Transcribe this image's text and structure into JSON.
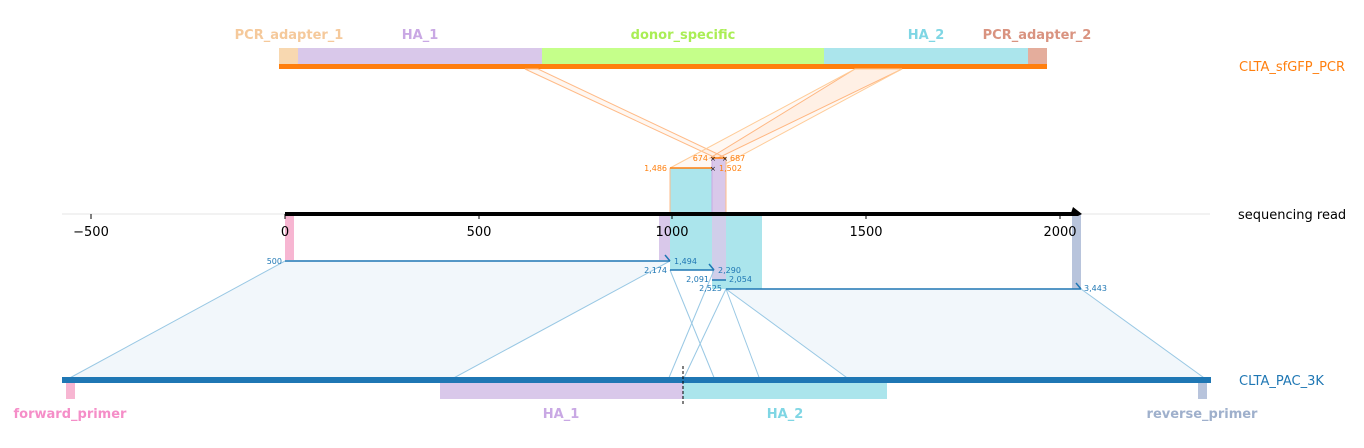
{
  "reads": {
    "donor_name": "CLTA_sfGFP_PCR",
    "read_name": "sequencing read",
    "target_name": "CLTA_PAC_3K"
  },
  "donor_features": [
    {
      "label": "PCR_adapter_1",
      "color": "#f8d8b0",
      "text_color": "#f5c99b"
    },
    {
      "label": "HA_1",
      "color": "#d9c8ea",
      "text_color": "#c9a8e4"
    },
    {
      "label": "donor_specific",
      "color": "#c5ff8a",
      "text_color": "#aaee55"
    },
    {
      "label": "HA_2",
      "color": "#abe5ec",
      "text_color": "#7fd6e4"
    },
    {
      "label": "PCR_adapter_2",
      "color": "#e4ad9c",
      "text_color": "#d99380"
    }
  ],
  "target_features": [
    {
      "label": "forward_primer",
      "color": "#f7b6d2",
      "text_color": "#f58ec8"
    },
    {
      "label": "HA_1",
      "color": "#d9c8ea",
      "text_color": "#c9a8e4"
    },
    {
      "label": "HA_2",
      "color": "#abe5ec",
      "text_color": "#7fd6e4"
    },
    {
      "label": "reverse_primer",
      "color": "#b8c4dc",
      "text_color": "#9fb0cc"
    }
  ],
  "axis": {
    "ticks": [
      "−500",
      "0",
      "500",
      "1000",
      "1500",
      "2000"
    ],
    "tick_values": [
      -500,
      0,
      500,
      1000,
      1500,
      2000
    ]
  },
  "coords": {
    "donor": [
      "674",
      "687",
      "1,486",
      "1,502"
    ],
    "target": [
      "500",
      "1,494",
      "2,174",
      "2,290",
      "2,091",
      "2,054",
      "2,525",
      "3,443"
    ]
  },
  "colors": {
    "donor": "#ff7f0e",
    "target": "#1f77b4",
    "read": "#000000"
  }
}
